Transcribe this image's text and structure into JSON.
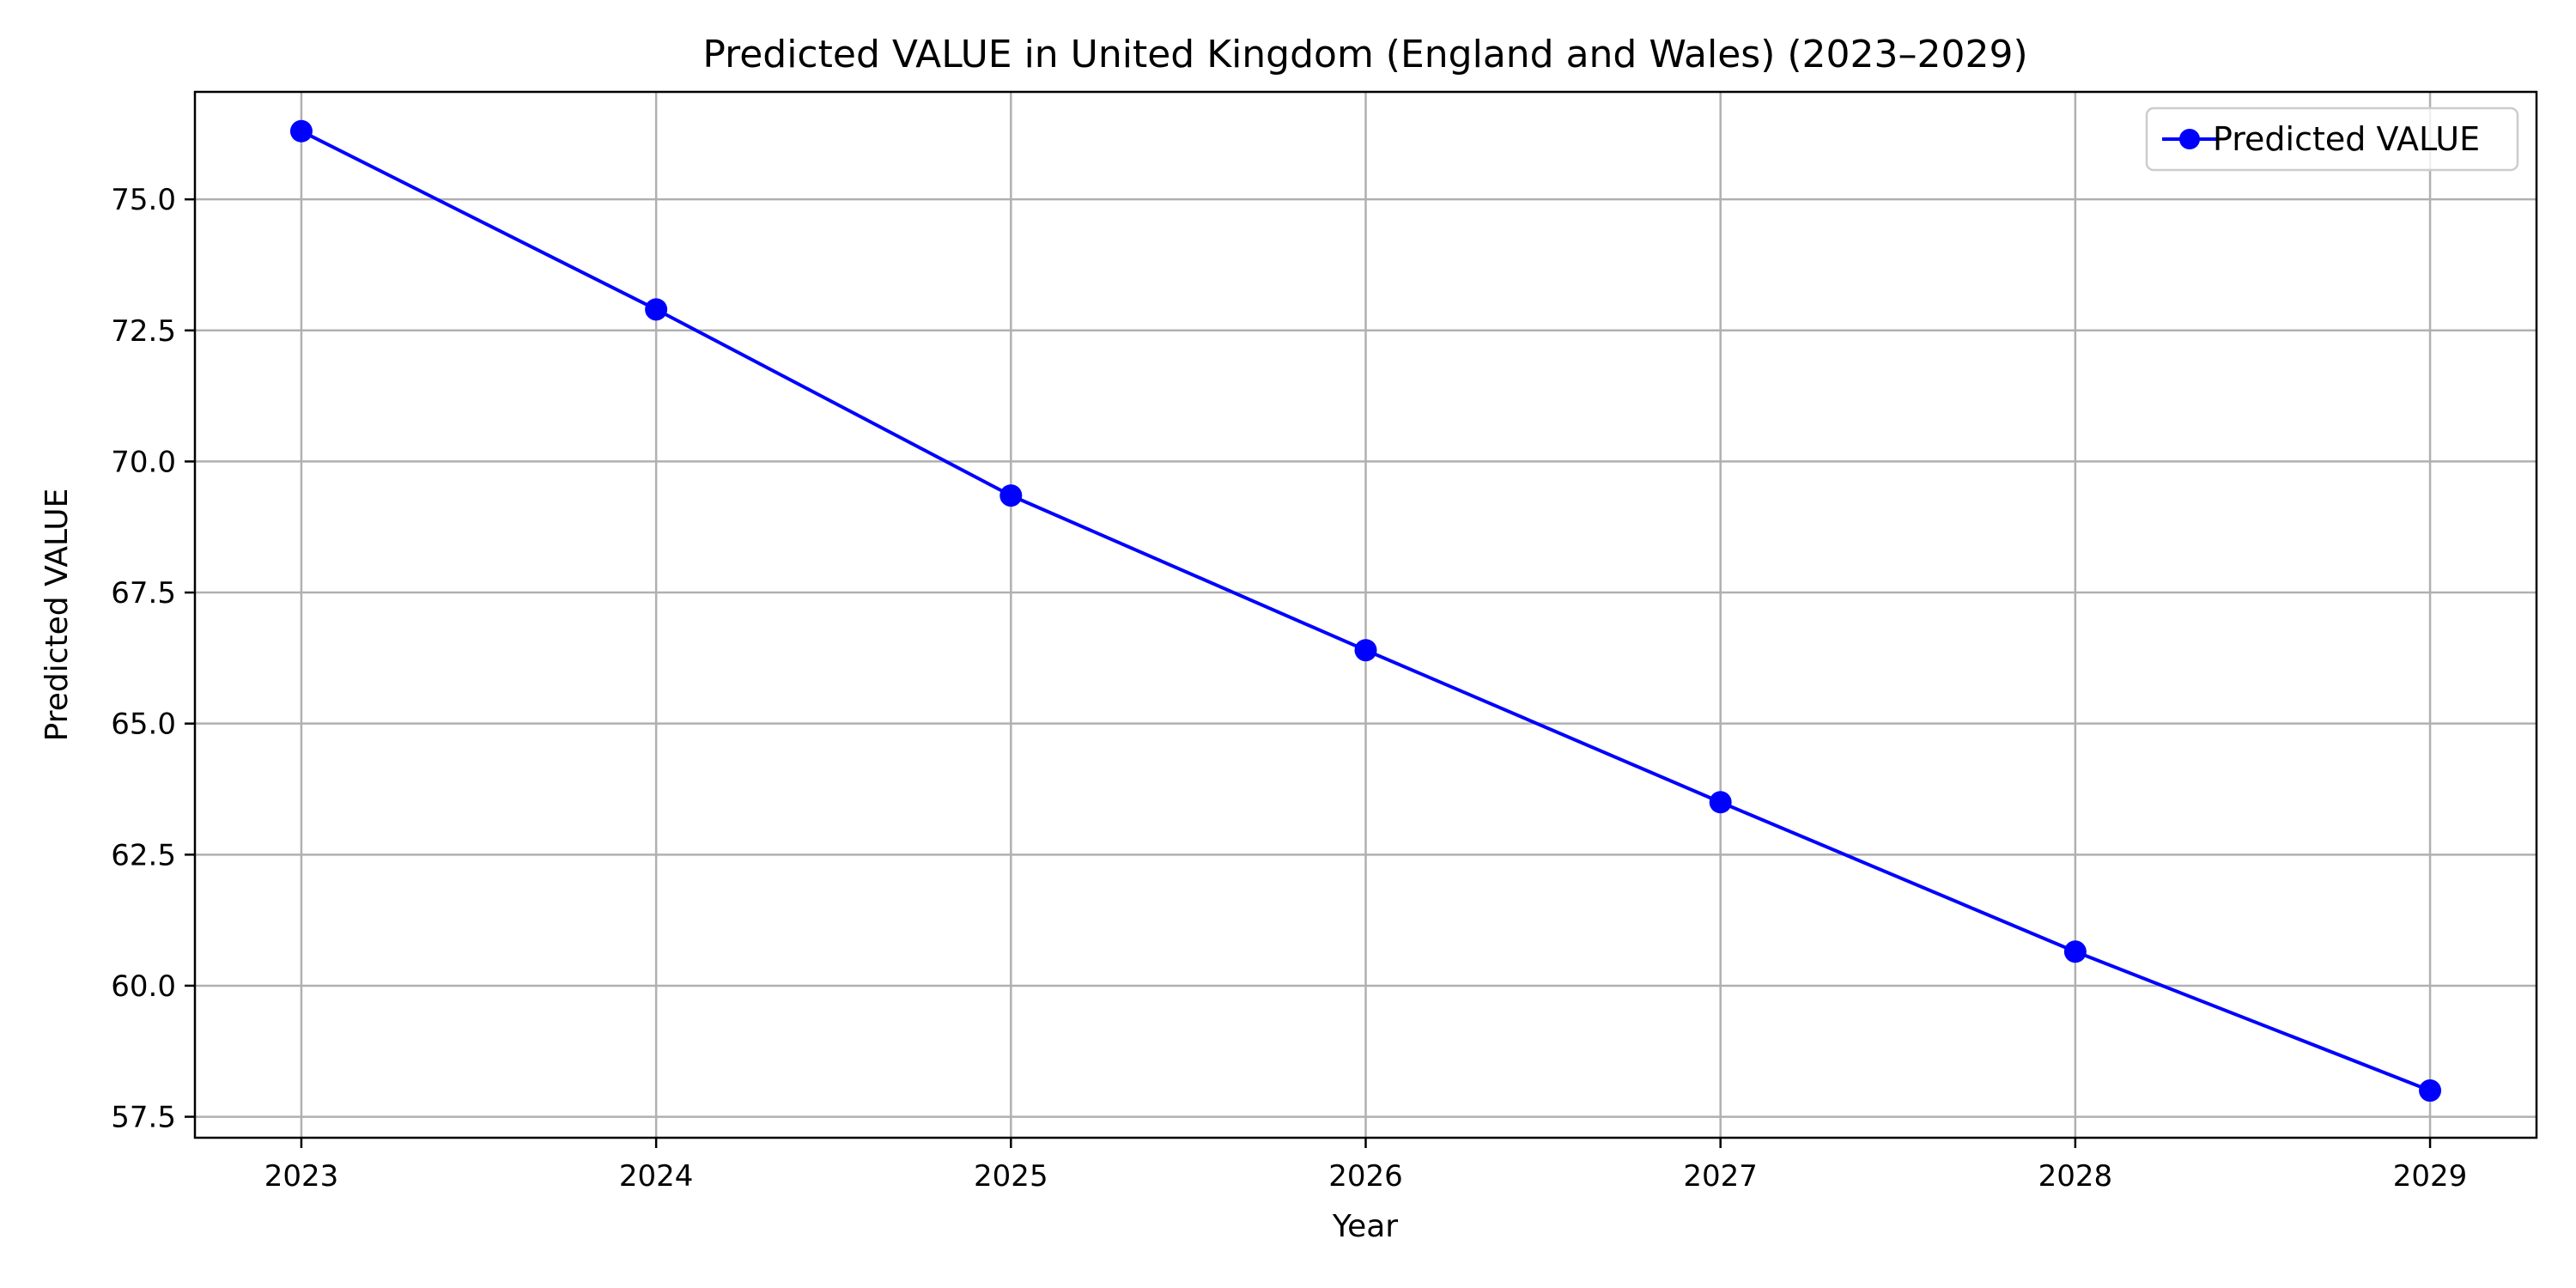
{
  "chart_data": {
    "type": "line",
    "title": "Predicted VALUE in United Kingdom (England and Wales) (2023–2029)",
    "xlabel": "Year",
    "ylabel": "Predicted VALUE",
    "x": [
      2023,
      2024,
      2025,
      2026,
      2027,
      2028,
      2029
    ],
    "x_tick_labels": [
      "2023",
      "2024",
      "2025",
      "2026",
      "2027",
      "2028",
      "2029"
    ],
    "xlim": [
      2022.7,
      2029.3
    ],
    "ylim": [
      57.1,
      77.05
    ],
    "y_ticks": [
      57.5,
      60.0,
      62.5,
      65.0,
      67.5,
      70.0,
      72.5,
      75.0
    ],
    "y_tick_labels": [
      "57.5",
      "60.0",
      "62.5",
      "65.0",
      "67.5",
      "70.0",
      "72.5",
      "75.0"
    ],
    "grid": true,
    "legend_position": "top-right",
    "series": [
      {
        "name": "Predicted VALUE",
        "color": "#0000ff",
        "marker": "circle",
        "values": [
          76.3,
          72.9,
          69.35,
          66.4,
          63.5,
          60.65,
          58.0
        ]
      }
    ]
  }
}
